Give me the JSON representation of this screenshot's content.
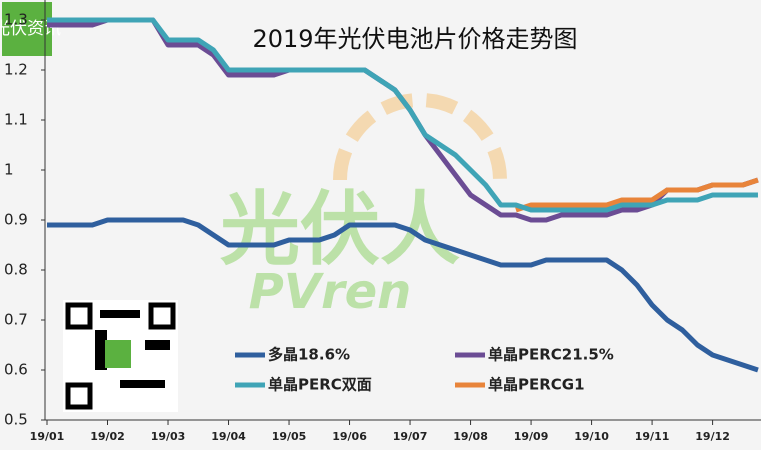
{
  "chart_data": {
    "type": "line",
    "title": "2019年光伏电池片价格走势图",
    "logo": "光伏资讯",
    "watermark": "光伏人",
    "watermark_sub": "PVren",
    "x": [
      1,
      1.25,
      1.5,
      1.75,
      2,
      2.25,
      2.5,
      2.75,
      3,
      3.25,
      3.5,
      3.75,
      4,
      4.25,
      4.5,
      4.75,
      5,
      5.25,
      5.5,
      5.75,
      6,
      6.25,
      6.5,
      6.75,
      7,
      7.25,
      7.5,
      7.75,
      8,
      8.25,
      8.5,
      8.75,
      9,
      9.25,
      9.5,
      9.75,
      10,
      10.25,
      10.5,
      10.75,
      11,
      11.25,
      11.5,
      11.75,
      12,
      12.25,
      12.5,
      12.75
    ],
    "xlim": [
      1,
      12.8
    ],
    "xticks": [
      {
        "value": 1,
        "label": "19/01"
      },
      {
        "value": 2,
        "label": "19/02"
      },
      {
        "value": 3,
        "label": "19/03"
      },
      {
        "value": 4,
        "label": "19/04"
      },
      {
        "value": 5,
        "label": "19/05"
      },
      {
        "value": 6,
        "label": "19/06"
      },
      {
        "value": 7,
        "label": "19/07"
      },
      {
        "value": 8,
        "label": "19/08"
      },
      {
        "value": 9,
        "label": "19/09"
      },
      {
        "value": 10,
        "label": "19/10"
      },
      {
        "value": 11,
        "label": "19/11"
      },
      {
        "value": 12,
        "label": "19/12"
      }
    ],
    "ylim": [
      0.5,
      1.3
    ],
    "yticks": [
      0.5,
      0.6,
      0.7,
      0.8,
      0.9,
      1,
      1.1,
      1.2,
      1.3
    ],
    "grid": false,
    "legend_position": "bottom",
    "series": [
      {
        "name": "多晶18.6%",
        "color": "#2f5f9e",
        "values": [
          0.89,
          0.89,
          0.89,
          0.89,
          0.9,
          0.9,
          0.9,
          0.9,
          0.9,
          0.9,
          0.89,
          0.87,
          0.85,
          0.85,
          0.85,
          0.85,
          0.86,
          0.86,
          0.86,
          0.87,
          0.89,
          0.89,
          0.89,
          0.89,
          0.88,
          0.86,
          0.85,
          0.84,
          0.83,
          0.82,
          0.81,
          0.81,
          0.81,
          0.82,
          0.82,
          0.82,
          0.82,
          0.82,
          0.8,
          0.77,
          0.73,
          0.7,
          0.68,
          0.65,
          0.63,
          0.62,
          0.61,
          0.6
        ]
      },
      {
        "name": "单晶PERC21.5%",
        "color": "#6b4c94",
        "values": [
          1.29,
          1.29,
          1.29,
          1.29,
          1.3,
          1.3,
          1.3,
          1.3,
          1.25,
          1.25,
          1.25,
          1.23,
          1.19,
          1.19,
          1.19,
          1.19,
          1.2,
          1.2,
          1.2,
          1.2,
          1.2,
          1.2,
          1.18,
          1.16,
          1.12,
          1.07,
          1.03,
          0.99,
          0.95,
          0.93,
          0.91,
          0.91,
          0.9,
          0.9,
          0.91,
          0.91,
          0.91,
          0.91,
          0.92,
          0.92,
          0.93,
          0.96,
          0.96,
          0.96,
          0.97,
          0.97,
          0.97,
          0.98
        ]
      },
      {
        "name": "单晶PERC双面",
        "color": "#3fa4b6",
        "values": [
          1.3,
          1.3,
          1.3,
          1.3,
          1.3,
          1.3,
          1.3,
          1.3,
          1.26,
          1.26,
          1.26,
          1.24,
          1.2,
          1.2,
          1.2,
          1.2,
          1.2,
          1.2,
          1.2,
          1.2,
          1.2,
          1.2,
          1.18,
          1.16,
          1.12,
          1.07,
          1.05,
          1.03,
          1.0,
          0.97,
          0.93,
          0.93,
          0.92,
          0.92,
          0.92,
          0.92,
          0.92,
          0.92,
          0.93,
          0.93,
          0.93,
          0.94,
          0.94,
          0.94,
          0.95,
          0.95,
          0.95,
          0.95
        ]
      },
      {
        "name": "单晶PERCG1",
        "color": "#e8843a",
        "values": [
          null,
          null,
          null,
          null,
          null,
          null,
          null,
          null,
          null,
          null,
          null,
          null,
          null,
          null,
          null,
          null,
          null,
          null,
          null,
          null,
          null,
          null,
          null,
          null,
          null,
          null,
          null,
          null,
          null,
          null,
          null,
          0.92,
          0.93,
          0.93,
          0.93,
          0.93,
          0.93,
          0.93,
          0.94,
          0.94,
          0.94,
          0.96,
          0.96,
          0.96,
          0.97,
          0.97,
          0.97,
          0.98
        ]
      }
    ]
  }
}
